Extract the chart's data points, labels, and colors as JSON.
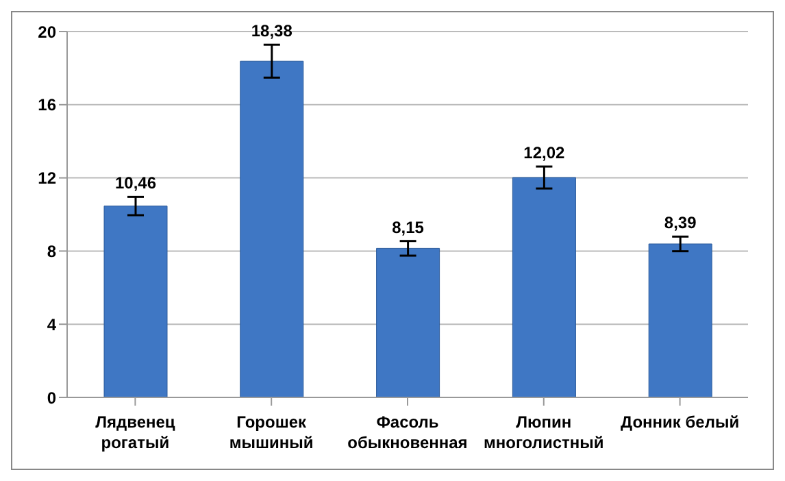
{
  "chart_data": {
    "type": "bar",
    "categories": [
      "Лядвенец рогатый",
      "Горошек мышиный",
      "Фасоль обыкновенная",
      "Люпин многолистный",
      "Донник белый"
    ],
    "values": [
      10.46,
      18.38,
      8.15,
      12.02,
      8.39
    ],
    "value_labels": [
      "10,46",
      "18,38",
      "8,15",
      "12,02",
      "8,39"
    ],
    "errors": [
      0.5,
      0.9,
      0.4,
      0.6,
      0.4
    ],
    "color": "#3f77c4",
    "ylim": [
      0,
      20
    ],
    "yticks": [
      0,
      4,
      8,
      12,
      16,
      20
    ],
    "grid": "y"
  }
}
